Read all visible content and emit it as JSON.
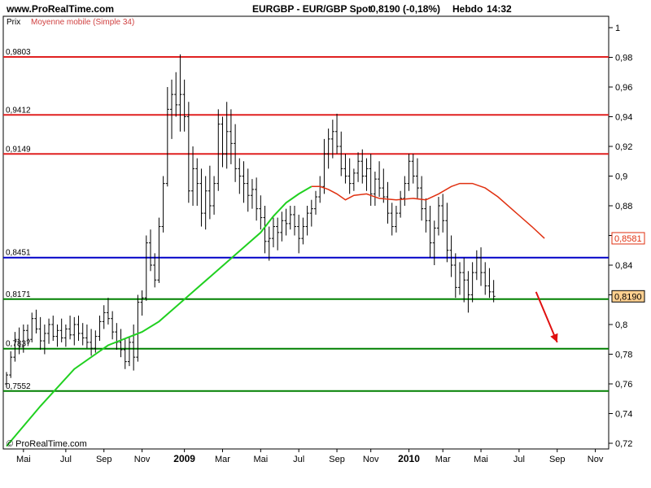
{
  "header": {
    "site": "www.ProRealTime.com",
    "title": "EURGBP - EUR/GBP Spot",
    "quote": "0,8190 (-0,18%)",
    "period": "Hebdo",
    "time": "14:32"
  },
  "panel": {
    "price_label": "Prix",
    "ma_label": "Moyenne mobile (Simple 34)",
    "footer": "© ProRealTime.com"
  },
  "colors": {
    "red_level": "#e02020",
    "blue_level": "#0000c8",
    "green_level": "#008000",
    "ma_up": "#20d020",
    "ma_down": "#e03010",
    "price_tag_bg": "#ffd090",
    "arrow": "#e01010",
    "bars": "#000000"
  },
  "chart_data": {
    "type": "ohlc",
    "instrument": "EURGBP - EUR/GBP Spot",
    "timeframe": "Hebdo",
    "ylim": [
      0.72,
      1.0
    ],
    "y_ticks": [
      "1",
      "0,98",
      "0,96",
      "0,94",
      "0,92",
      "0,9",
      "0,88",
      "0,86",
      "0,84",
      "0,82",
      "0,8",
      "0,78",
      "0,76",
      "0,74",
      "0,72"
    ],
    "y_tick_values": [
      1.0,
      0.98,
      0.96,
      0.94,
      0.92,
      0.9,
      0.88,
      0.86,
      0.84,
      0.82,
      0.8,
      0.78,
      0.76,
      0.74,
      0.72
    ],
    "x_ticks": [
      {
        "label": "Mai",
        "week": 4,
        "bold": false
      },
      {
        "label": "Jul",
        "week": 14,
        "bold": false
      },
      {
        "label": "Sep",
        "week": 23,
        "bold": false
      },
      {
        "label": "Nov",
        "week": 32,
        "bold": false
      },
      {
        "label": "2009",
        "week": 42,
        "bold": true
      },
      {
        "label": "Mar",
        "week": 51,
        "bold": false
      },
      {
        "label": "Mai",
        "week": 60,
        "bold": false
      },
      {
        "label": "Jul",
        "week": 69,
        "bold": false
      },
      {
        "label": "Sep",
        "week": 78,
        "bold": false
      },
      {
        "label": "Nov",
        "week": 86,
        "bold": false
      },
      {
        "label": "2010",
        "week": 95,
        "bold": true
      },
      {
        "label": "Mar",
        "week": 103,
        "bold": false
      },
      {
        "label": "Mai",
        "week": 112,
        "bold": false
      },
      {
        "label": "Jul",
        "week": 121,
        "bold": false
      },
      {
        "label": "Sep",
        "week": 130,
        "bold": false
      },
      {
        "label": "Nov",
        "week": 139,
        "bold": false
      }
    ],
    "xlim": [
      0,
      141
    ],
    "levels": [
      {
        "value": 0.9803,
        "label": "0,9803",
        "color": "red"
      },
      {
        "value": 0.9412,
        "label": "0,9412",
        "color": "red"
      },
      {
        "value": 0.9149,
        "label": "0,9149",
        "color": "red"
      },
      {
        "value": 0.8451,
        "label": "0,8451",
        "color": "blue"
      },
      {
        "value": 0.8171,
        "label": "0,8171",
        "color": "green"
      },
      {
        "value": 0.7837,
        "label": "0,7837",
        "color": "green"
      },
      {
        "value": 0.7552,
        "label": "0,7552",
        "color": "green"
      }
    ],
    "price_tags": [
      {
        "value": 0.8581,
        "label": "0,8581",
        "style": "ma"
      },
      {
        "value": 0.819,
        "label": "0,8190",
        "style": "last"
      }
    ],
    "moving_average": {
      "name": "Moyenne mobile (Simple 34)",
      "points": [
        [
          0,
          0.718
        ],
        [
          8,
          0.745
        ],
        [
          16,
          0.77
        ],
        [
          24,
          0.786
        ],
        [
          32,
          0.795
        ],
        [
          36,
          0.802
        ],
        [
          40,
          0.812
        ],
        [
          44,
          0.822
        ],
        [
          48,
          0.832
        ],
        [
          52,
          0.842
        ],
        [
          56,
          0.852
        ],
        [
          60,
          0.862
        ],
        [
          63,
          0.873
        ],
        [
          66,
          0.882
        ],
        [
          69,
          0.888
        ],
        [
          72,
          0.893
        ],
        [
          74,
          0.893
        ],
        [
          76,
          0.891
        ],
        [
          78,
          0.888
        ],
        [
          80,
          0.884
        ],
        [
          82,
          0.887
        ],
        [
          85,
          0.888
        ],
        [
          88,
          0.885
        ],
        [
          92,
          0.884
        ],
        [
          96,
          0.885
        ],
        [
          99,
          0.884
        ],
        [
          102,
          0.888
        ],
        [
          105,
          0.893
        ],
        [
          107,
          0.895
        ],
        [
          110,
          0.895
        ],
        [
          113,
          0.892
        ],
        [
          116,
          0.886
        ],
        [
          120,
          0.876
        ],
        [
          124,
          0.866
        ],
        [
          127,
          0.858
        ]
      ],
      "down_from_week": 72
    },
    "forecast_arrow": {
      "from": [
        125,
        0.822
      ],
      "to": [
        130,
        0.788
      ]
    },
    "ohlc": [
      [
        0.76,
        0.768,
        0.758,
        0.766
      ],
      [
        0.766,
        0.782,
        0.764,
        0.778
      ],
      [
        0.778,
        0.795,
        0.775,
        0.79
      ],
      [
        0.79,
        0.798,
        0.78,
        0.785
      ],
      [
        0.785,
        0.8,
        0.781,
        0.796
      ],
      [
        0.796,
        0.8,
        0.787,
        0.79
      ],
      [
        0.79,
        0.808,
        0.788,
        0.804
      ],
      [
        0.804,
        0.81,
        0.794,
        0.797
      ],
      [
        0.797,
        0.805,
        0.783,
        0.789
      ],
      [
        0.789,
        0.8,
        0.78,
        0.794
      ],
      [
        0.794,
        0.804,
        0.787,
        0.8
      ],
      [
        0.8,
        0.806,
        0.789,
        0.792
      ],
      [
        0.792,
        0.8,
        0.785,
        0.796
      ],
      [
        0.796,
        0.804,
        0.788,
        0.791
      ],
      [
        0.791,
        0.8,
        0.785,
        0.797
      ],
      [
        0.797,
        0.806,
        0.79,
        0.793
      ],
      [
        0.793,
        0.805,
        0.786,
        0.8
      ],
      [
        0.8,
        0.806,
        0.789,
        0.794
      ],
      [
        0.794,
        0.801,
        0.786,
        0.791
      ],
      [
        0.791,
        0.8,
        0.784,
        0.788
      ],
      [
        0.788,
        0.797,
        0.779,
        0.784
      ],
      [
        0.784,
        0.796,
        0.781,
        0.792
      ],
      [
        0.792,
        0.806,
        0.789,
        0.802
      ],
      [
        0.802,
        0.813,
        0.797,
        0.808
      ],
      [
        0.808,
        0.818,
        0.8,
        0.804
      ],
      [
        0.804,
        0.809,
        0.79,
        0.795
      ],
      [
        0.795,
        0.801,
        0.783,
        0.788
      ],
      [
        0.788,
        0.797,
        0.778,
        0.783
      ],
      [
        0.783,
        0.79,
        0.77,
        0.775
      ],
      [
        0.775,
        0.792,
        0.772,
        0.788
      ],
      [
        0.788,
        0.8,
        0.769,
        0.778
      ],
      [
        0.778,
        0.82,
        0.775,
        0.815
      ],
      [
        0.815,
        0.823,
        0.806,
        0.818
      ],
      [
        0.818,
        0.86,
        0.816,
        0.855
      ],
      [
        0.855,
        0.864,
        0.836,
        0.84
      ],
      [
        0.84,
        0.848,
        0.825,
        0.83
      ],
      [
        0.83,
        0.872,
        0.828,
        0.866
      ],
      [
        0.866,
        0.9,
        0.862,
        0.895
      ],
      [
        0.895,
        0.96,
        0.893,
        0.945
      ],
      [
        0.945,
        0.965,
        0.925,
        0.955
      ],
      [
        0.955,
        0.97,
        0.94,
        0.948
      ],
      [
        0.948,
        0.982,
        0.93,
        0.955
      ],
      [
        0.955,
        0.965,
        0.93,
        0.94
      ],
      [
        0.94,
        0.95,
        0.882,
        0.89
      ],
      [
        0.89,
        0.92,
        0.88,
        0.905
      ],
      [
        0.905,
        0.912,
        0.88,
        0.895
      ],
      [
        0.895,
        0.905,
        0.866,
        0.875
      ],
      [
        0.875,
        0.9,
        0.864,
        0.89
      ],
      [
        0.89,
        0.907,
        0.871,
        0.88
      ],
      [
        0.88,
        0.9,
        0.874,
        0.895
      ],
      [
        0.895,
        0.945,
        0.89,
        0.935
      ],
      [
        0.935,
        0.94,
        0.906,
        0.915
      ],
      [
        0.915,
        0.95,
        0.905,
        0.93
      ],
      [
        0.93,
        0.945,
        0.908,
        0.922
      ],
      [
        0.922,
        0.935,
        0.896,
        0.905
      ],
      [
        0.905,
        0.912,
        0.888,
        0.9
      ],
      [
        0.9,
        0.91,
        0.882,
        0.895
      ],
      [
        0.895,
        0.905,
        0.876,
        0.887
      ],
      [
        0.887,
        0.898,
        0.878,
        0.891
      ],
      [
        0.891,
        0.899,
        0.87,
        0.878
      ],
      [
        0.878,
        0.887,
        0.864,
        0.872
      ],
      [
        0.872,
        0.88,
        0.848,
        0.856
      ],
      [
        0.856,
        0.866,
        0.843,
        0.858
      ],
      [
        0.858,
        0.872,
        0.852,
        0.866
      ],
      [
        0.866,
        0.872,
        0.85,
        0.862
      ],
      [
        0.862,
        0.876,
        0.856,
        0.87
      ],
      [
        0.87,
        0.878,
        0.86,
        0.868
      ],
      [
        0.868,
        0.88,
        0.864,
        0.874
      ],
      [
        0.874,
        0.88,
        0.86,
        0.866
      ],
      [
        0.866,
        0.874,
        0.848,
        0.858
      ],
      [
        0.858,
        0.872,
        0.854,
        0.866
      ],
      [
        0.866,
        0.88,
        0.86,
        0.875
      ],
      [
        0.875,
        0.884,
        0.866,
        0.878
      ],
      [
        0.878,
        0.89,
        0.874,
        0.886
      ],
      [
        0.886,
        0.9,
        0.882,
        0.893
      ],
      [
        0.893,
        0.925,
        0.888,
        0.915
      ],
      [
        0.915,
        0.932,
        0.905,
        0.925
      ],
      [
        0.925,
        0.938,
        0.912,
        0.93
      ],
      [
        0.93,
        0.942,
        0.915,
        0.92
      ],
      [
        0.92,
        0.93,
        0.9,
        0.905
      ],
      [
        0.905,
        0.915,
        0.895,
        0.9
      ],
      [
        0.9,
        0.912,
        0.888,
        0.895
      ],
      [
        0.895,
        0.905,
        0.89,
        0.902
      ],
      [
        0.902,
        0.916,
        0.896,
        0.91
      ],
      [
        0.91,
        0.918,
        0.895,
        0.9
      ],
      [
        0.9,
        0.912,
        0.89,
        0.905
      ],
      [
        0.905,
        0.915,
        0.88,
        0.888
      ],
      [
        0.888,
        0.903,
        0.88,
        0.898
      ],
      [
        0.898,
        0.91,
        0.886,
        0.892
      ],
      [
        0.892,
        0.905,
        0.882,
        0.886
      ],
      [
        0.886,
        0.896,
        0.868,
        0.875
      ],
      [
        0.875,
        0.882,
        0.86,
        0.866
      ],
      [
        0.866,
        0.88,
        0.862,
        0.875
      ],
      [
        0.875,
        0.89,
        0.872,
        0.885
      ],
      [
        0.885,
        0.9,
        0.88,
        0.895
      ],
      [
        0.895,
        0.915,
        0.89,
        0.91
      ],
      [
        0.91,
        0.915,
        0.895,
        0.9
      ],
      [
        0.9,
        0.912,
        0.885,
        0.892
      ],
      [
        0.892,
        0.9,
        0.87,
        0.878
      ],
      [
        0.878,
        0.885,
        0.862,
        0.87
      ],
      [
        0.87,
        0.88,
        0.845,
        0.855
      ],
      [
        0.855,
        0.87,
        0.84,
        0.865
      ],
      [
        0.865,
        0.886,
        0.86,
        0.88
      ],
      [
        0.88,
        0.888,
        0.862,
        0.87
      ],
      [
        0.87,
        0.882,
        0.842,
        0.85
      ],
      [
        0.85,
        0.86,
        0.832,
        0.84
      ],
      [
        0.84,
        0.848,
        0.818,
        0.825
      ],
      [
        0.825,
        0.842,
        0.82,
        0.835
      ],
      [
        0.835,
        0.845,
        0.815,
        0.83
      ],
      [
        0.83,
        0.836,
        0.808,
        0.82
      ],
      [
        0.82,
        0.842,
        0.815,
        0.835
      ],
      [
        0.835,
        0.85,
        0.83,
        0.845
      ],
      [
        0.845,
        0.852,
        0.826,
        0.835
      ],
      [
        0.835,
        0.842,
        0.82,
        0.826
      ],
      [
        0.826,
        0.838,
        0.818,
        0.822
      ],
      [
        0.822,
        0.83,
        0.815,
        0.819
      ]
    ]
  }
}
